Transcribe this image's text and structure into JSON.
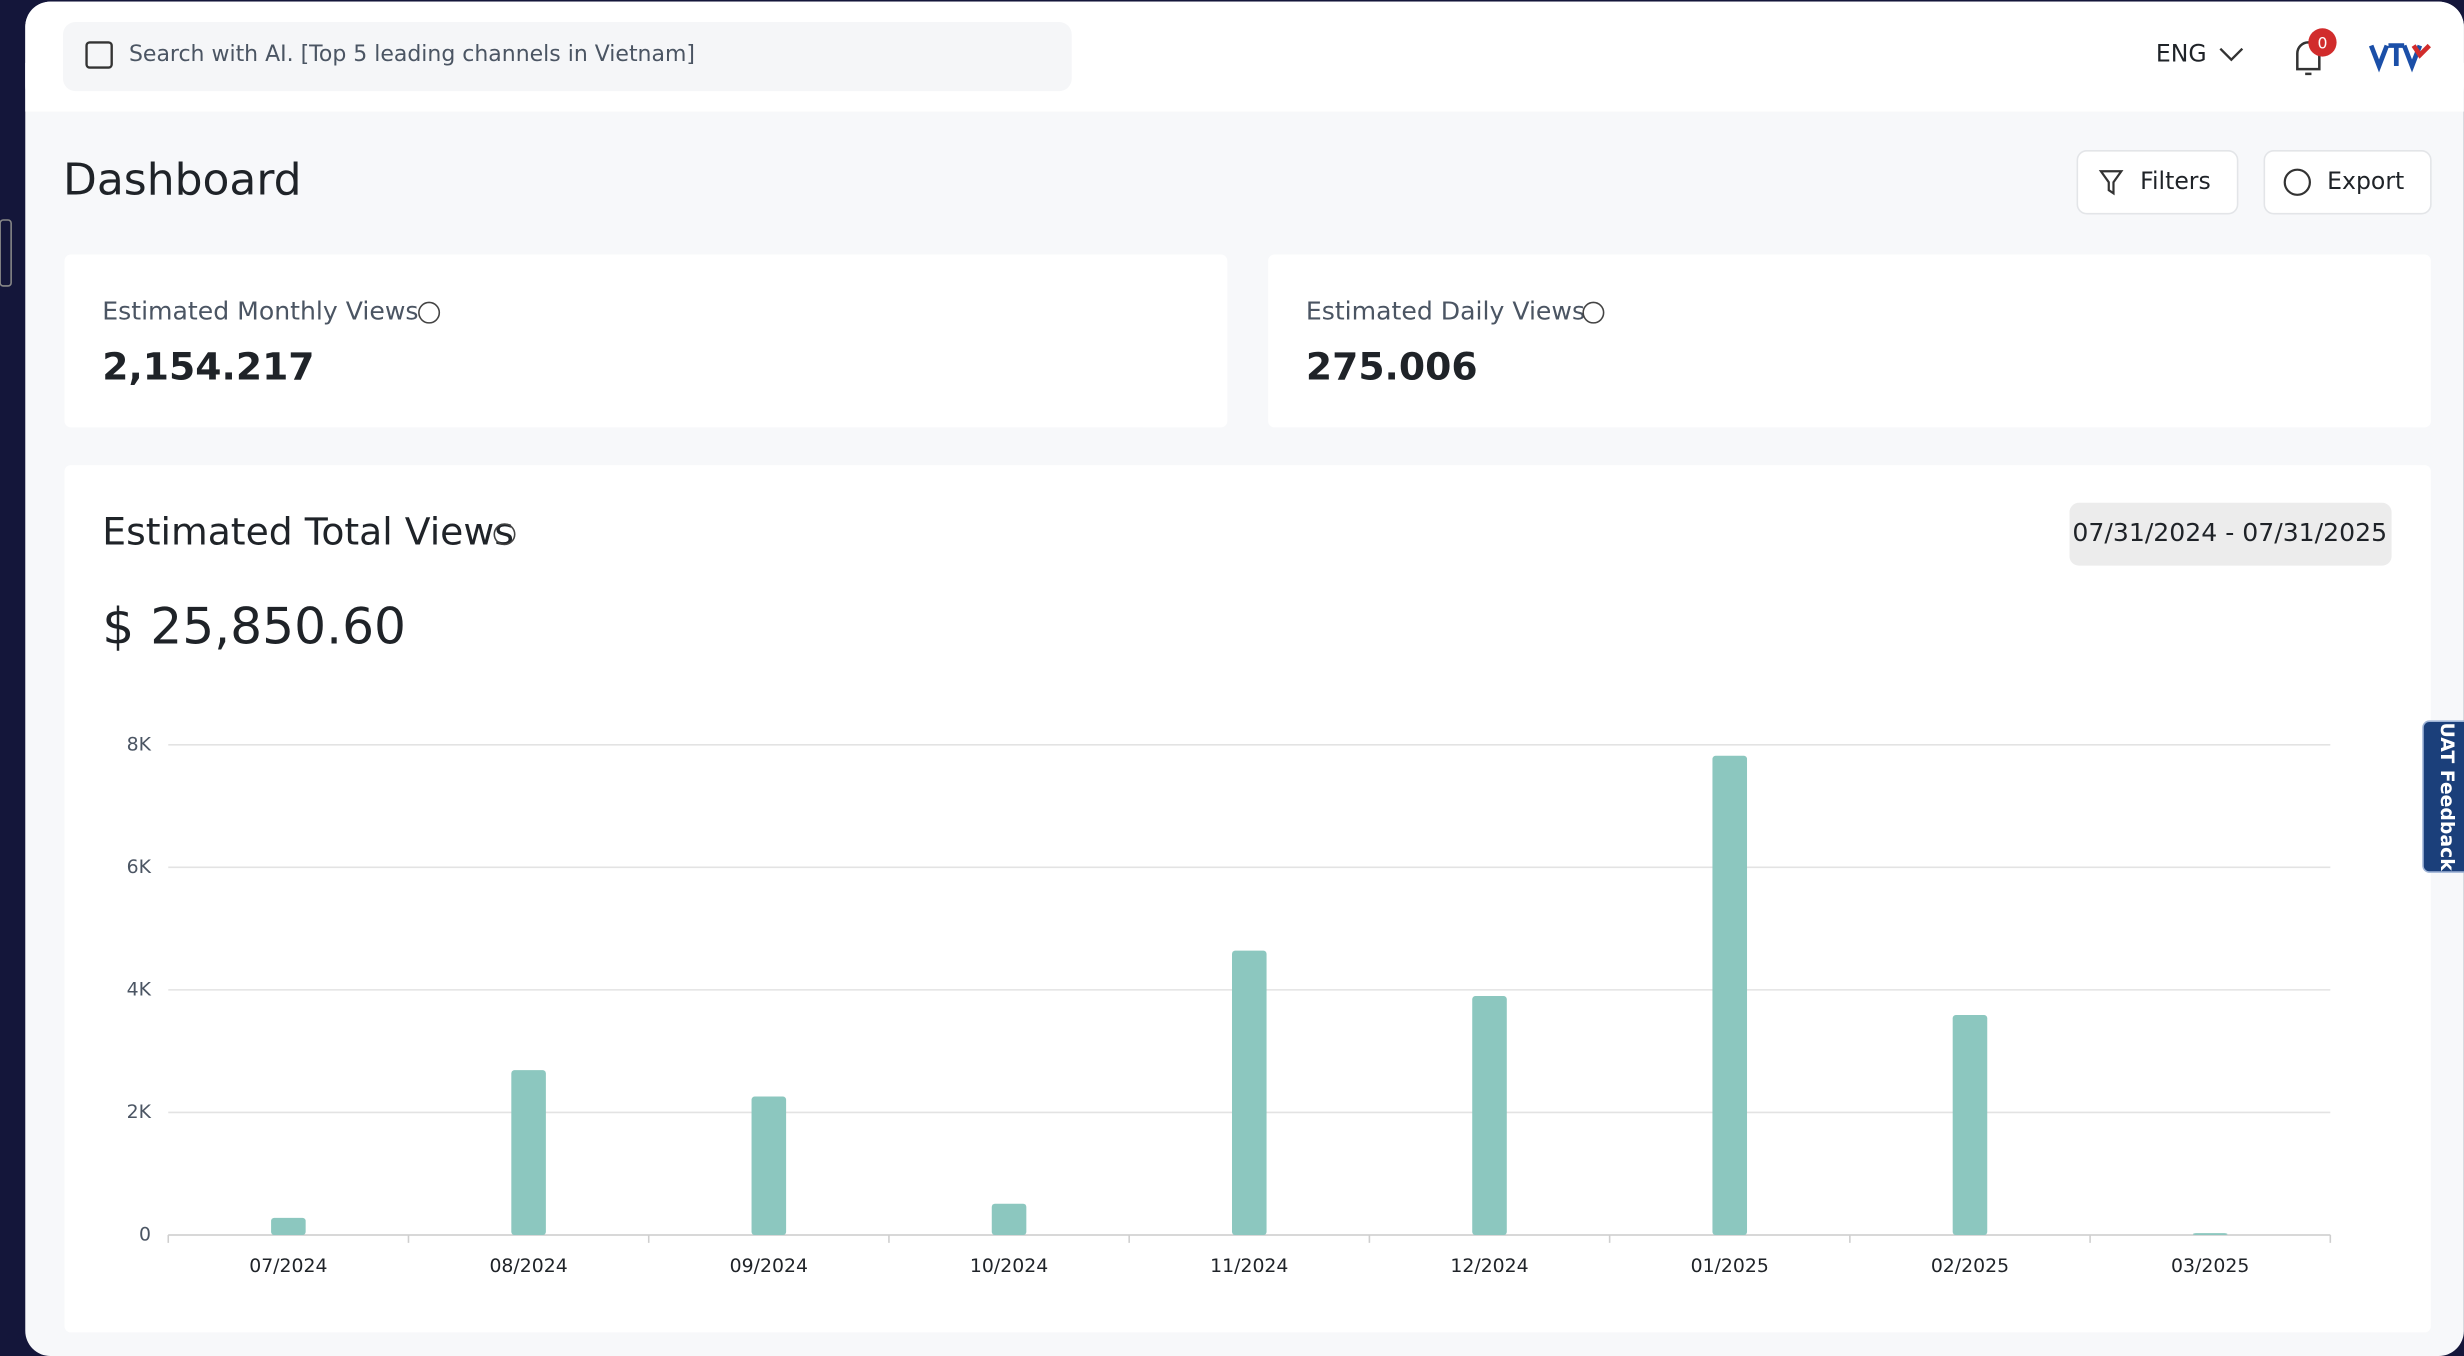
{
  "header": {
    "search_placeholder": "Search with AI. [Top 5 leading channels in Vietnam]",
    "language": "ENG",
    "notification_count": "0"
  },
  "page": {
    "title": "Dashboard",
    "filters_button": "Filters",
    "export_button": "Export",
    "feedback_tab": "UAT Feedback"
  },
  "stats": [
    {
      "label": "Estimated Monthly Views",
      "value": "2,154.217"
    },
    {
      "label": "Estimated Daily Views",
      "value": "275.006"
    }
  ],
  "chart_data": {
    "type": "bar",
    "title": "Estimated Total Views",
    "total": "$ 25,850.60",
    "date_range": "07/31/2024 - 07/31/2025",
    "categories": [
      "07/2024",
      "08/2024",
      "09/2024",
      "10/2024",
      "11/2024",
      "12/2024",
      "01/2025",
      "02/2025",
      "03/2025"
    ],
    "values": [
      280,
      2690,
      2260,
      510,
      4640,
      3900,
      7820,
      3590,
      30
    ],
    "color": "#8cc7bf",
    "ylim": [
      0,
      8000
    ],
    "yticks": [
      0,
      {
        "value": 2000,
        "label": "2K"
      },
      {
        "value": 4000,
        "label": "4K"
      },
      {
        "value": 6000,
        "label": "6K"
      },
      {
        "value": 8000,
        "label": "8K"
      }
    ],
    "grid": true
  }
}
